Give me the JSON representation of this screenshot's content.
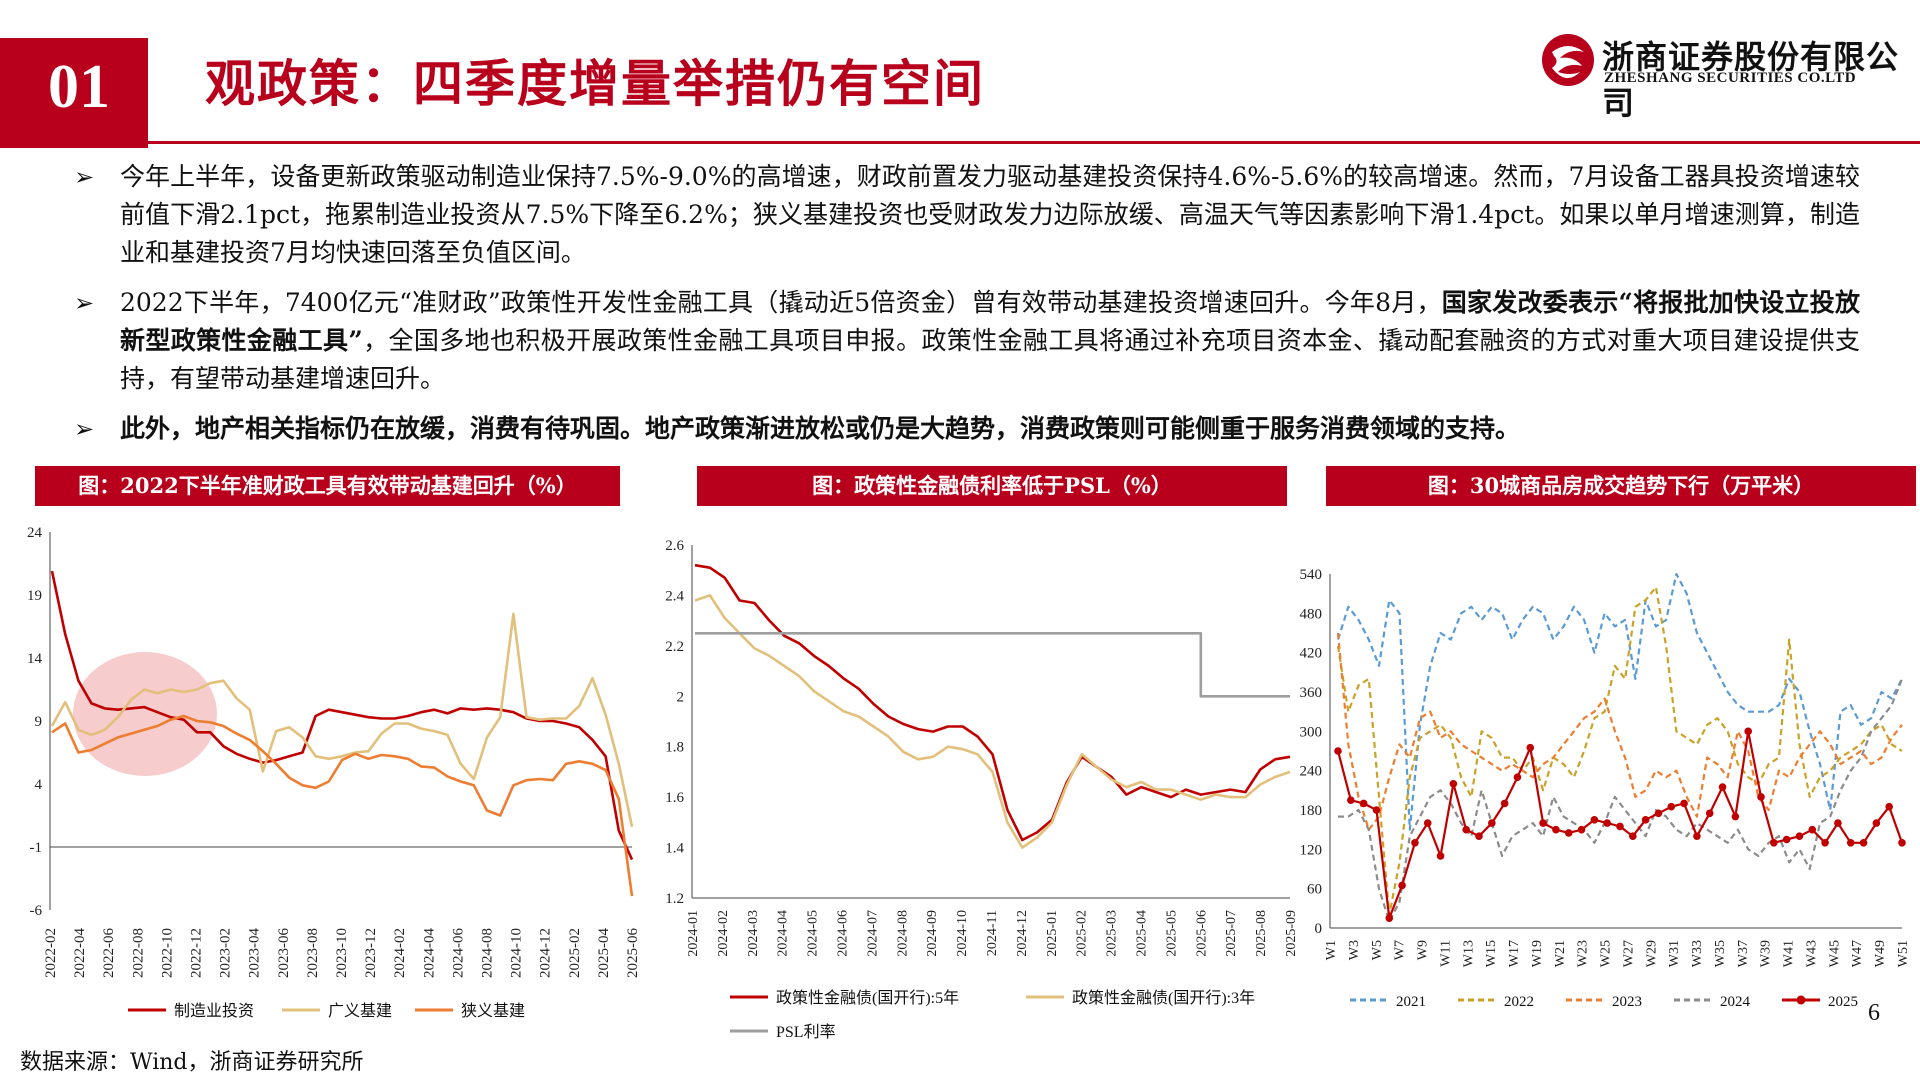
{
  "header": {
    "section_number": "01",
    "title": "观政策：四季度增量举措仍有空间",
    "logo_cn": "浙商证券股份有限公司",
    "logo_en": "ZHESHANG SECURITIES CO.LTD"
  },
  "bullets": [
    {
      "arrow": "➢",
      "text": "今年上半年，设备更新政策驱动制造业保持7.5%-9.0%的高增速，财政前置发力驱动基建投资保持4.6%-5.6%的较高增速。然而，7月设备工器具投资增速较前值下滑2.1pct，拖累制造业投资从7.5%下降至6.2%；狭义基建投资也受财政发力边际放缓、高温天气等因素影响下滑1.4pct。如果以单月增速测算，制造业和基建投资7月均快速回落至负值区间。"
    },
    {
      "arrow": "➢",
      "text_a": "2022下半年，7400亿元“准财政”政策性开发性金融工具（撬动近5倍资金）曾有效带动基建投资增速回升。今年8月，",
      "text_bold": "国家发改委表示“将报批加快设立投放新型政策性金融工具”",
      "text_b": "，全国多地也积极开展政策性金融工具项目申报。政策性金融工具将通过补充项目资本金、撬动配套融资的方式对重大项目建设提供支持，有望带动基建增速回升。"
    },
    {
      "arrow": "➢",
      "text_bold": "此外，地产相关指标仍在放缓，消费有待巩固。地产政策渐进放松或仍是大趋势，消费政策则可能侧重于服务消费领域的支持。"
    }
  ],
  "banners": [
    "图：2022下半年准财政工具有效带动基建回升（%）",
    "图：政策性金融债利率低于PSL（%）",
    "图：30城商品房成交趋势下行（万平米）"
  ],
  "chart_data": [
    {
      "type": "line",
      "title": "图：2022下半年准财政工具有效带动基建回升（%）",
      "ylim": [
        -6,
        24
      ],
      "yticks": [
        "24",
        "19",
        "14",
        "9",
        "4",
        "-1",
        "-6"
      ],
      "xticks": [
        "2022-02",
        "2022-04",
        "2022-06",
        "2022-08",
        "2022-10",
        "2022-12",
        "2023-02",
        "2023-04",
        "2023-06",
        "2023-08",
        "2023-10",
        "2023-12",
        "2024-02",
        "2024-04",
        "2024-06",
        "2024-08",
        "2024-10",
        "2024-12",
        "2025-02",
        "2025-04",
        "2025-06"
      ],
      "series": [
        {
          "name": "制造业投资",
          "color": "#c00000",
          "values": [
            20.9,
            15.9,
            12.2,
            10.4,
            10.0,
            9.9,
            10.0,
            10.1,
            9.7,
            9.3,
            9.1,
            8.1,
            8.1,
            7.0,
            6.4,
            6.0,
            5.7,
            5.9,
            6.2,
            6.5,
            9.4,
            9.9,
            9.7,
            9.5,
            9.3,
            9.2,
            9.2,
            9.4,
            9.7,
            9.9,
            9.6,
            10.0,
            9.9,
            10.0,
            9.9,
            9.7,
            9.2,
            9.0,
            9.0,
            8.8,
            8.5,
            7.5,
            6.2,
            0.3,
            -2.0
          ]
        },
        {
          "name": "广义基建",
          "color": "#e2c07c",
          "values": [
            8.6,
            10.5,
            8.3,
            7.9,
            8.3,
            9.3,
            10.7,
            11.5,
            11.2,
            11.5,
            11.3,
            11.5,
            12.0,
            12.2,
            10.8,
            9.9,
            5.0,
            8.2,
            8.5,
            7.7,
            6.2,
            6.0,
            6.2,
            6.5,
            6.6,
            8.0,
            8.8,
            8.8,
            8.4,
            8.2,
            7.9,
            5.6,
            4.4,
            7.7,
            9.3,
            17.5,
            9.3,
            9.1,
            9.2,
            9.2,
            10.2,
            12.4,
            9.5,
            5.6,
            0.6
          ]
        },
        {
          "name": "狭义基建",
          "color": "#ed7d31",
          "values": [
            8.1,
            8.8,
            6.5,
            6.7,
            7.2,
            7.7,
            8.0,
            8.3,
            8.6,
            9.1,
            9.4,
            9.0,
            8.9,
            8.6,
            8.0,
            7.5,
            6.6,
            5.6,
            4.5,
            3.9,
            3.7,
            4.2,
            5.9,
            6.4,
            6.0,
            6.3,
            6.2,
            6.0,
            5.4,
            5.3,
            4.6,
            4.2,
            3.9,
            1.9,
            1.5,
            3.9,
            4.3,
            4.4,
            4.3,
            5.6,
            5.8,
            5.6,
            5.1,
            2.8,
            -4.9
          ]
        }
      ],
      "highlight": "ellipse"
    },
    {
      "type": "line",
      "title": "图：政策性金融债利率低于PSL（%）",
      "ylim": [
        1.2,
        2.6
      ],
      "yticks": [
        "2.6",
        "2.4",
        "2.2",
        "2",
        "1.8",
        "1.6",
        "1.4",
        "1.2"
      ],
      "xticks": [
        "2024-01",
        "2024-02",
        "2024-03",
        "2024-04",
        "2024-05",
        "2024-06",
        "2024-07",
        "2024-08",
        "2024-09",
        "2024-10",
        "2024-11",
        "2024-12",
        "2025-01",
        "2025-02",
        "2025-03",
        "2025-04",
        "2025-05",
        "2025-06",
        "2025-07",
        "2025-08",
        "2025-09"
      ],
      "series": [
        {
          "name": "政策性金融债(国开行):5年",
          "color": "#c00000",
          "values": [
            2.52,
            2.51,
            2.47,
            2.38,
            2.37,
            2.3,
            2.24,
            2.21,
            2.16,
            2.12,
            2.07,
            2.03,
            1.97,
            1.92,
            1.89,
            1.87,
            1.86,
            1.88,
            1.88,
            1.84,
            1.77,
            1.55,
            1.43,
            1.46,
            1.51,
            1.66,
            1.76,
            1.72,
            1.68,
            1.61,
            1.64,
            1.62,
            1.6,
            1.63,
            1.61,
            1.62,
            1.63,
            1.62,
            1.71,
            1.75,
            1.76
          ]
        },
        {
          "name": "政策性金融债(国开行):3年",
          "color": "#e2c07c",
          "values": [
            2.38,
            2.4,
            2.31,
            2.25,
            2.19,
            2.16,
            2.12,
            2.08,
            2.02,
            1.98,
            1.94,
            1.92,
            1.88,
            1.84,
            1.78,
            1.75,
            1.76,
            1.8,
            1.79,
            1.77,
            1.7,
            1.5,
            1.4,
            1.44,
            1.5,
            1.65,
            1.77,
            1.72,
            1.67,
            1.64,
            1.66,
            1.63,
            1.63,
            1.61,
            1.59,
            1.61,
            1.6,
            1.6,
            1.65,
            1.68,
            1.7
          ]
        },
        {
          "name": "PSL利率",
          "color": "#9e9e9e",
          "values": [
            2.25,
            2.25,
            2.25,
            2.25,
            2.25,
            2.25,
            2.25,
            2.25,
            2.25,
            2.25,
            2.25,
            2.25,
            2.25,
            2.25,
            2.25,
            2.25,
            2.25,
            2.25,
            2.25,
            2.25,
            2.25,
            2.25,
            2.25,
            2.25,
            2.25,
            2.25,
            2.25,
            2.25,
            2.25,
            2.25,
            2.25,
            2.25,
            2.25,
            2.25,
            2.0,
            2.0,
            2.0,
            2.0,
            2.0,
            2.0,
            2.0
          ],
          "x_step": true
        }
      ]
    },
    {
      "type": "line",
      "title": "图：30城商品房成交趋势下行（万平米）",
      "ylim": [
        0,
        540
      ],
      "yticks": [
        "540",
        "480",
        "420",
        "360",
        "300",
        "240",
        "180",
        "120",
        "60",
        "0"
      ],
      "xticks": [
        "W1",
        "W3",
        "W5",
        "W7",
        "W9",
        "W11",
        "W13",
        "W15",
        "W17",
        "W19",
        "W21",
        "W23",
        "W25",
        "W27",
        "W29",
        "W31",
        "W33",
        "W35",
        "W37",
        "W39",
        "W41",
        "W43",
        "W45",
        "W47",
        "W49",
        "W51"
      ],
      "series": [
        {
          "name": "2021",
          "color": "#5b9bd5",
          "dash": true,
          "values": [
            440,
            490,
            470,
            440,
            400,
            500,
            480,
            150,
            310,
            400,
            450,
            440,
            480,
            490,
            470,
            490,
            480,
            440,
            470,
            490,
            480,
            440,
            460,
            490,
            470,
            420,
            480,
            460,
            470,
            380,
            500,
            460,
            470,
            540,
            510,
            450,
            420,
            390,
            360,
            340,
            330,
            330,
            330,
            340,
            380,
            360,
            300,
            250,
            180,
            330,
            340,
            310,
            320,
            360,
            350,
            380
          ]
        },
        {
          "name": "2022",
          "color": "#c9a227",
          "dash": true,
          "values": [
            430,
            330,
            370,
            380,
            200,
            20,
            100,
            230,
            290,
            300,
            310,
            290,
            230,
            200,
            300,
            290,
            260,
            260,
            240,
            260,
            210,
            260,
            250,
            230,
            270,
            320,
            330,
            400,
            380,
            490,
            500,
            520,
            430,
            300,
            290,
            280,
            310,
            320,
            300,
            250,
            230,
            220,
            250,
            260,
            440,
            280,
            200,
            230,
            240,
            260,
            270,
            280,
            300,
            310,
            280,
            270
          ]
        },
        {
          "name": "2023",
          "color": "#ed7d31",
          "dash": true,
          "values": [
            450,
            280,
            200,
            150,
            170,
            230,
            280,
            260,
            320,
            330,
            290,
            300,
            280,
            270,
            260,
            250,
            240,
            250,
            240,
            230,
            250,
            260,
            280,
            300,
            320,
            330,
            350,
            300,
            260,
            200,
            210,
            240,
            230,
            240,
            200,
            170,
            260,
            250,
            230,
            300,
            270,
            200,
            180,
            240,
            230,
            260,
            280,
            300,
            280,
            250,
            260,
            270,
            250,
            260,
            290,
            310
          ]
        },
        {
          "name": "2024",
          "color": "#8c8c8c",
          "dash": true,
          "values": [
            170,
            170,
            180,
            150,
            60,
            10,
            40,
            140,
            170,
            200,
            210,
            190,
            160,
            140,
            210,
            160,
            110,
            140,
            150,
            160,
            140,
            200,
            170,
            160,
            150,
            130,
            160,
            200,
            180,
            160,
            140,
            180,
            170,
            150,
            140,
            160,
            150,
            140,
            130,
            150,
            120,
            110,
            130,
            140,
            100,
            120,
            90,
            160,
            170,
            210,
            240,
            260,
            300,
            320,
            340,
            380
          ]
        },
        {
          "name": "2025",
          "color": "#c00000",
          "dash": false,
          "values": [
            270,
            195,
            190,
            180,
            15,
            65,
            130,
            160,
            110,
            220,
            150,
            140,
            160,
            190,
            230,
            275,
            160,
            150,
            145,
            150,
            165,
            160,
            155,
            140,
            165,
            175,
            185,
            190,
            140,
            175,
            215,
            170,
            300,
            200,
            130,
            135,
            140,
            150,
            130,
            160,
            130,
            130,
            160,
            185,
            130
          ]
        }
      ]
    }
  ],
  "source": "数据来源：Wind，浙商证券研究所",
  "page_number": "6"
}
